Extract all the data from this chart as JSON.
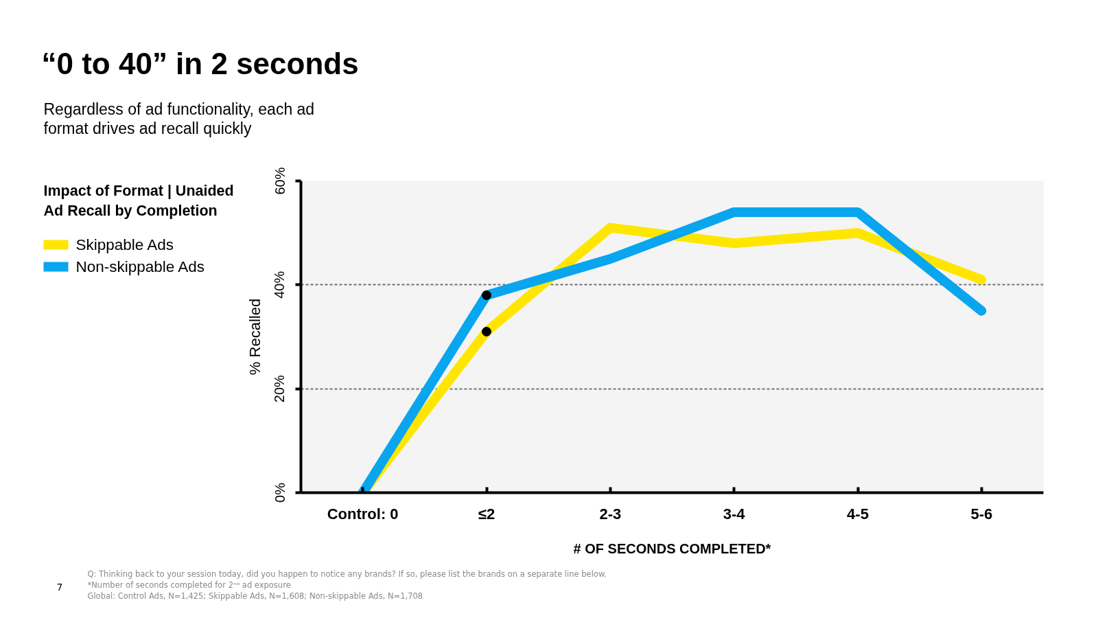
{
  "chart_data": {
    "type": "line",
    "title": "“0 to 40” in 2 seconds",
    "subtitle": "Regardless of ad functionality, each ad format drives ad recall quickly",
    "legend_title": "Impact of Format | Unaided Ad Recall by Completion",
    "xlabel": "# OF SECONDS COMPLETED*",
    "ylabel": "% Recalled",
    "categories": [
      "Control: 0",
      "≤2",
      "2-3",
      "3-4",
      "4-5",
      "5-6"
    ],
    "series": [
      {
        "name": "Skippable Ads",
        "color": "#ffe600",
        "values": [
          0,
          31,
          51,
          48,
          50,
          41
        ]
      },
      {
        "name": "Non-skippable Ads",
        "color": "#0aa5ef",
        "values": [
          0,
          38,
          45,
          54,
          54,
          35
        ]
      },
      {
        "type": "scatter",
        "marker": "circle",
        "color": "#000000",
        "x": [
          "≤2",
          "≤2"
        ],
        "values": [
          31,
          38
        ]
      }
    ],
    "ylim": [
      0,
      60
    ],
    "yticks": [
      {
        "value": 0,
        "label": "0%"
      },
      {
        "value": 20,
        "label": "20%"
      },
      {
        "value": 40,
        "label": "40%"
      },
      {
        "value": 60,
        "label": "60%"
      }
    ],
    "grid": "y",
    "legend": "left",
    "line_style": "solid",
    "annotations": [
      "Q: Thinking back to your session today, did you happen to notice any brands? If so, please list the brands on a separate line below.",
      "*Number of seconds completed for 2ⁿᵈ ad exposure",
      "Global: Control Ads, N=1,425; Skippable Ads, N=1,608; Non-skippable Ads, N=1,708",
      "7"
    ]
  }
}
